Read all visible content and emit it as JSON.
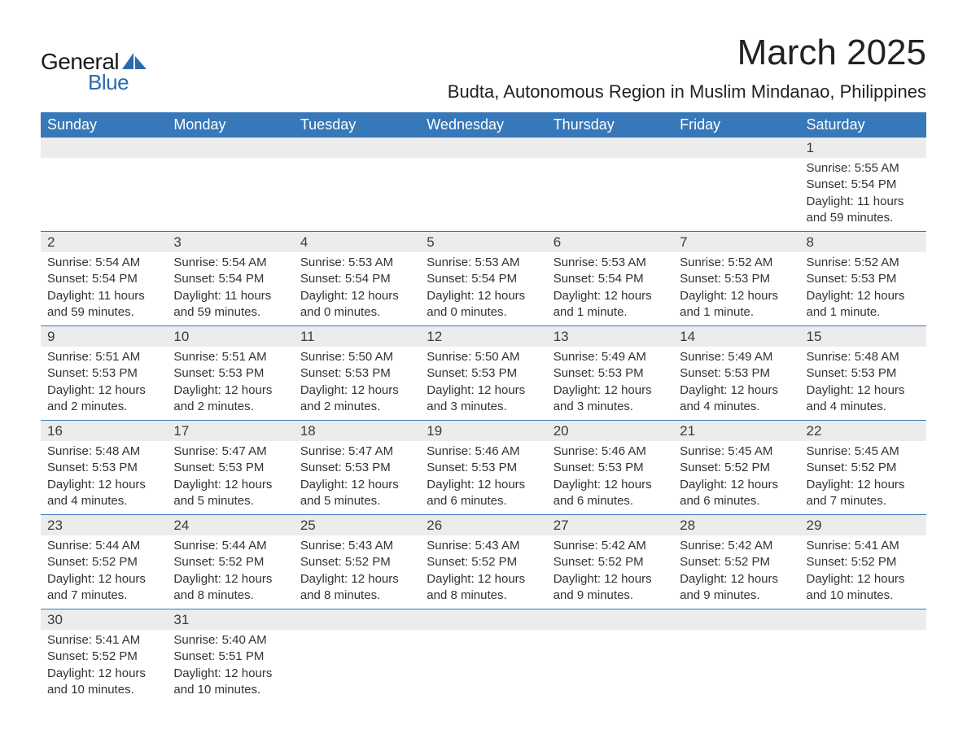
{
  "logo": {
    "text1": "General",
    "text2": "Blue",
    "shape_color": "#2a6ab0"
  },
  "header": {
    "month_title": "March 2025",
    "location": "Budta, Autonomous Region in Muslim Mindanao, Philippines"
  },
  "colors": {
    "header_bg": "#3778b9",
    "header_text": "#ffffff",
    "daynum_bg": "#ececec",
    "row_divider": "#3778b9",
    "text": "#333333",
    "logo_blue": "#2a6ab0"
  },
  "weekdays": [
    "Sunday",
    "Monday",
    "Tuesday",
    "Wednesday",
    "Thursday",
    "Friday",
    "Saturday"
  ],
  "labels": {
    "sunrise": "Sunrise:",
    "sunset": "Sunset:",
    "daylight": "Daylight:"
  },
  "weeks": [
    [
      null,
      null,
      null,
      null,
      null,
      null,
      {
        "d": "1",
        "sunrise": "5:55 AM",
        "sunset": "5:54 PM",
        "daylight": "11 hours and 59 minutes."
      }
    ],
    [
      {
        "d": "2",
        "sunrise": "5:54 AM",
        "sunset": "5:54 PM",
        "daylight": "11 hours and 59 minutes."
      },
      {
        "d": "3",
        "sunrise": "5:54 AM",
        "sunset": "5:54 PM",
        "daylight": "11 hours and 59 minutes."
      },
      {
        "d": "4",
        "sunrise": "5:53 AM",
        "sunset": "5:54 PM",
        "daylight": "12 hours and 0 minutes."
      },
      {
        "d": "5",
        "sunrise": "5:53 AM",
        "sunset": "5:54 PM",
        "daylight": "12 hours and 0 minutes."
      },
      {
        "d": "6",
        "sunrise": "5:53 AM",
        "sunset": "5:54 PM",
        "daylight": "12 hours and 1 minute."
      },
      {
        "d": "7",
        "sunrise": "5:52 AM",
        "sunset": "5:53 PM",
        "daylight": "12 hours and 1 minute."
      },
      {
        "d": "8",
        "sunrise": "5:52 AM",
        "sunset": "5:53 PM",
        "daylight": "12 hours and 1 minute."
      }
    ],
    [
      {
        "d": "9",
        "sunrise": "5:51 AM",
        "sunset": "5:53 PM",
        "daylight": "12 hours and 2 minutes."
      },
      {
        "d": "10",
        "sunrise": "5:51 AM",
        "sunset": "5:53 PM",
        "daylight": "12 hours and 2 minutes."
      },
      {
        "d": "11",
        "sunrise": "5:50 AM",
        "sunset": "5:53 PM",
        "daylight": "12 hours and 2 minutes."
      },
      {
        "d": "12",
        "sunrise": "5:50 AM",
        "sunset": "5:53 PM",
        "daylight": "12 hours and 3 minutes."
      },
      {
        "d": "13",
        "sunrise": "5:49 AM",
        "sunset": "5:53 PM",
        "daylight": "12 hours and 3 minutes."
      },
      {
        "d": "14",
        "sunrise": "5:49 AM",
        "sunset": "5:53 PM",
        "daylight": "12 hours and 4 minutes."
      },
      {
        "d": "15",
        "sunrise": "5:48 AM",
        "sunset": "5:53 PM",
        "daylight": "12 hours and 4 minutes."
      }
    ],
    [
      {
        "d": "16",
        "sunrise": "5:48 AM",
        "sunset": "5:53 PM",
        "daylight": "12 hours and 4 minutes."
      },
      {
        "d": "17",
        "sunrise": "5:47 AM",
        "sunset": "5:53 PM",
        "daylight": "12 hours and 5 minutes."
      },
      {
        "d": "18",
        "sunrise": "5:47 AM",
        "sunset": "5:53 PM",
        "daylight": "12 hours and 5 minutes."
      },
      {
        "d": "19",
        "sunrise": "5:46 AM",
        "sunset": "5:53 PM",
        "daylight": "12 hours and 6 minutes."
      },
      {
        "d": "20",
        "sunrise": "5:46 AM",
        "sunset": "5:53 PM",
        "daylight": "12 hours and 6 minutes."
      },
      {
        "d": "21",
        "sunrise": "5:45 AM",
        "sunset": "5:52 PM",
        "daylight": "12 hours and 6 minutes."
      },
      {
        "d": "22",
        "sunrise": "5:45 AM",
        "sunset": "5:52 PM",
        "daylight": "12 hours and 7 minutes."
      }
    ],
    [
      {
        "d": "23",
        "sunrise": "5:44 AM",
        "sunset": "5:52 PM",
        "daylight": "12 hours and 7 minutes."
      },
      {
        "d": "24",
        "sunrise": "5:44 AM",
        "sunset": "5:52 PM",
        "daylight": "12 hours and 8 minutes."
      },
      {
        "d": "25",
        "sunrise": "5:43 AM",
        "sunset": "5:52 PM",
        "daylight": "12 hours and 8 minutes."
      },
      {
        "d": "26",
        "sunrise": "5:43 AM",
        "sunset": "5:52 PM",
        "daylight": "12 hours and 8 minutes."
      },
      {
        "d": "27",
        "sunrise": "5:42 AM",
        "sunset": "5:52 PM",
        "daylight": "12 hours and 9 minutes."
      },
      {
        "d": "28",
        "sunrise": "5:42 AM",
        "sunset": "5:52 PM",
        "daylight": "12 hours and 9 minutes."
      },
      {
        "d": "29",
        "sunrise": "5:41 AM",
        "sunset": "5:52 PM",
        "daylight": "12 hours and 10 minutes."
      }
    ],
    [
      {
        "d": "30",
        "sunrise": "5:41 AM",
        "sunset": "5:52 PM",
        "daylight": "12 hours and 10 minutes."
      },
      {
        "d": "31",
        "sunrise": "5:40 AM",
        "sunset": "5:51 PM",
        "daylight": "12 hours and 10 minutes."
      },
      null,
      null,
      null,
      null,
      null
    ]
  ]
}
